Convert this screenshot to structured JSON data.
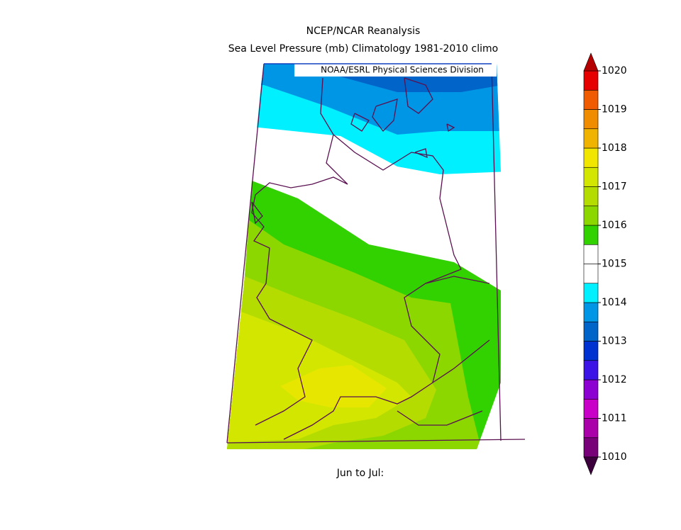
{
  "header": {
    "title": "NCEP/NCAR Reanalysis",
    "subtitle": "Sea Level Pressure (mb) Climatology 1981-2010 climo"
  },
  "map": {
    "credit": "NOAA/ESRL Physical Sciences Division",
    "footer": "Jun to Jul:"
  },
  "colorbar": {
    "ticks": [
      1010,
      1011,
      1012,
      1013,
      1014,
      1015,
      1016,
      1017,
      1018,
      1019,
      1020
    ],
    "colors": [
      "#780078",
      "#aa00aa",
      "#c800c8",
      "#8c00d2",
      "#3c14e6",
      "#0032d2",
      "#0064c8",
      "#0096e6",
      "#00f0ff",
      "#ffffff",
      "#ffffff",
      "#32d200",
      "#8cd700",
      "#b4dc00",
      "#d2e600",
      "#f0e600",
      "#f0b400",
      "#f08c00",
      "#f05a00",
      "#e60000"
    ],
    "low_color": "#3c003c",
    "high_color": "#b40000"
  }
}
